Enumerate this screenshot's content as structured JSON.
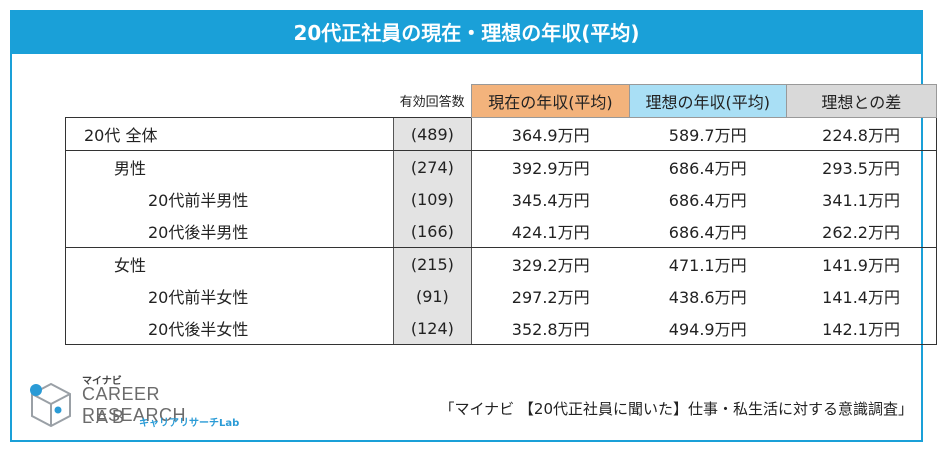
{
  "title": "20代正社員の現在・理想の年収(平均)",
  "header": {
    "respondents": "有効回答数",
    "current": "現在の年収(平均)",
    "ideal": "理想の年収(平均)",
    "diff": "理想との差"
  },
  "rows": [
    {
      "label": "20代 全体",
      "n": "(489)",
      "current": "364.9万円",
      "ideal": "589.7万円",
      "diff": "224.8万円"
    },
    {
      "label": "男性",
      "n": "(274)",
      "current": "392.9万円",
      "ideal": "686.4万円",
      "diff": "293.5万円"
    },
    {
      "label": "20代前半男性",
      "n": "(109)",
      "current": "345.4万円",
      "ideal": "686.4万円",
      "diff": "341.1万円"
    },
    {
      "label": "20代後半男性",
      "n": "(166)",
      "current": "424.1万円",
      "ideal": "686.4万円",
      "diff": "262.2万円"
    },
    {
      "label": "女性",
      "n": "(215)",
      "current": "329.2万円",
      "ideal": "471.1万円",
      "diff": "141.9万円"
    },
    {
      "label": "20代前半女性",
      "n": "(91)",
      "current": "297.2万円",
      "ideal": "438.6万円",
      "diff": "141.4万円"
    },
    {
      "label": "20代後半女性",
      "n": "(124)",
      "current": "352.8万円",
      "ideal": "494.9万円",
      "diff": "142.1万円"
    }
  ],
  "logo": {
    "brand": "マイナビ",
    "line1": "CAREER RESEARCH",
    "line2": "LAB",
    "sub": "キャリアリサーチLab"
  },
  "source": "「マイナビ 【20代正社員に聞いた】仕事・私生活に対する意識調査」",
  "colors": {
    "banner": "#1aa0d8",
    "current_header": "#f3b37c",
    "ideal_header": "#a9dff5",
    "diff_header": "#d9d9d9",
    "respondents_cells": "#e3e3e3"
  }
}
